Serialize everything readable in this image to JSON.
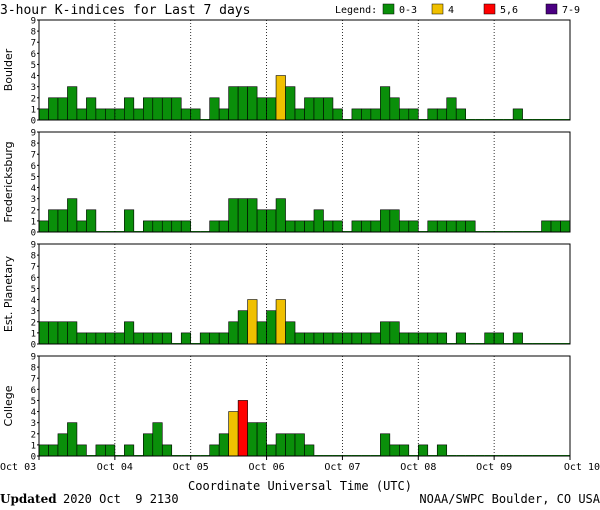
{
  "header": {
    "title": "3-hour K-indices for Last 7 days"
  },
  "legend": {
    "label": "Legend:",
    "items": [
      {
        "label": "0-3",
        "color": "#0a8f0a"
      },
      {
        "label": "4",
        "color": "#f0c000"
      },
      {
        "label": "5,6",
        "color": "#ff0000"
      },
      {
        "label": "7-9",
        "color": "#4b0082"
      }
    ]
  },
  "footer": {
    "updated_label": "Updated",
    "updated_value": "2020 Oct  9 2130",
    "credit": "NOAA/SWPC Boulder, CO USA"
  },
  "chart_data": {
    "type": "bar",
    "xlabel": "Coordinate Universal Time (UTC)",
    "x_ticks": [
      "Oct 03",
      "Oct 04",
      "Oct 05",
      "Oct 06",
      "Oct 07",
      "Oct 08",
      "Oct 09",
      "Oct 10"
    ],
    "ylim": [
      0,
      9
    ],
    "y_ticks": [
      "0",
      "1",
      "2",
      "3",
      "4",
      "5",
      "6",
      "7",
      "8",
      "9"
    ],
    "bins_per_day": 8,
    "color_scale": {
      "0-3": "#0a8f0a",
      "4": "#f0c000",
      "5-6": "#ff0000",
      "7-9": "#4b0082"
    },
    "series": [
      {
        "name": "Boulder",
        "values": [
          1,
          2,
          2,
          3,
          1,
          2,
          1,
          1,
          1,
          2,
          1,
          2,
          2,
          2,
          2,
          1,
          1,
          0,
          2,
          1,
          3,
          3,
          3,
          2,
          2,
          4,
          3,
          1,
          2,
          2,
          2,
          1,
          0,
          1,
          1,
          1,
          3,
          2,
          1,
          1,
          0,
          1,
          1,
          2,
          1,
          0,
          0,
          0,
          0,
          0,
          1,
          0,
          0,
          0,
          0,
          0
        ]
      },
      {
        "name": "Fredericksburg",
        "values": [
          1,
          2,
          2,
          3,
          1,
          2,
          0,
          0,
          0,
          2,
          0,
          1,
          1,
          1,
          1,
          1,
          0,
          0,
          1,
          1,
          3,
          3,
          3,
          2,
          2,
          3,
          1,
          1,
          1,
          2,
          1,
          1,
          0,
          1,
          1,
          1,
          2,
          2,
          1,
          1,
          0,
          1,
          1,
          1,
          1,
          1,
          0,
          0,
          0,
          0,
          0,
          0,
          0,
          1,
          1,
          1
        ]
      },
      {
        "name": "Est. Planetary",
        "values": [
          2,
          2,
          2,
          2,
          1,
          1,
          1,
          1,
          1,
          2,
          1,
          1,
          1,
          1,
          0,
          1,
          0,
          1,
          1,
          1,
          2,
          3,
          4,
          2,
          3,
          4,
          2,
          1,
          1,
          1,
          1,
          1,
          1,
          1,
          1,
          1,
          2,
          2,
          1,
          1,
          1,
          1,
          1,
          0,
          1,
          0,
          0,
          1,
          1,
          0,
          1,
          0,
          0,
          0,
          0,
          0
        ]
      },
      {
        "name": "College",
        "values": [
          1,
          1,
          2,
          3,
          1,
          0,
          1,
          1,
          0,
          1,
          0,
          2,
          3,
          1,
          0,
          0,
          0,
          0,
          1,
          2,
          4,
          5,
          3,
          3,
          1,
          2,
          2,
          2,
          1,
          0,
          0,
          0,
          0,
          0,
          0,
          0,
          2,
          1,
          1,
          0,
          1,
          0,
          1,
          0,
          0,
          0,
          0,
          0,
          0,
          0,
          0,
          0,
          0,
          0,
          0,
          0
        ]
      }
    ]
  }
}
